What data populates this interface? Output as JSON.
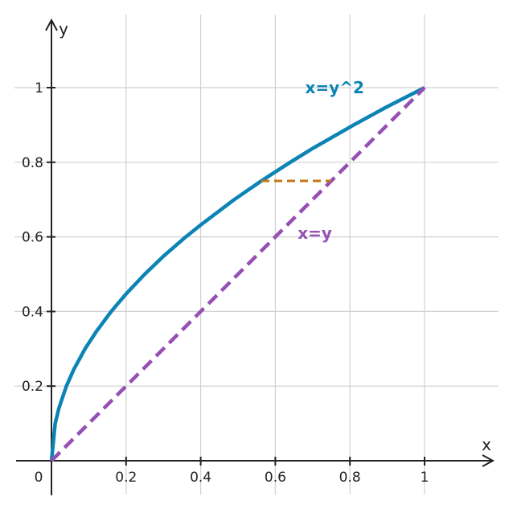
{
  "chart_data": {
    "type": "line",
    "xlabel": "x",
    "ylabel": "y",
    "xlim": [
      0,
      1.18
    ],
    "ylim": [
      0,
      1.18
    ],
    "grid": true,
    "origin_label": "0",
    "x_ticks": [
      {
        "value": 0.2,
        "label": "0.2"
      },
      {
        "value": 0.4,
        "label": "0.4"
      },
      {
        "value": 0.6,
        "label": "0.6"
      },
      {
        "value": 0.8,
        "label": "0.8"
      },
      {
        "value": 1,
        "label": "1"
      }
    ],
    "y_ticks": [
      {
        "value": 0.2,
        "label": "0.2"
      },
      {
        "value": 0.4,
        "label": "0.4"
      },
      {
        "value": 0.6,
        "label": "0.6"
      },
      {
        "value": 0.8,
        "label": "0.8"
      },
      {
        "value": 1,
        "label": "1"
      }
    ],
    "series": [
      {
        "name": "x=y^2",
        "color": "#0b84b5",
        "style": "solid",
        "x": [
          0,
          0.01,
          0.02,
          0.04,
          0.06,
          0.09,
          0.12,
          0.16,
          0.2,
          0.25,
          0.3,
          0.36,
          0.4,
          0.49,
          0.5625,
          0.64,
          0.7,
          0.81,
          0.9,
          1
        ],
        "y": [
          0,
          0.1,
          0.141,
          0.2,
          0.245,
          0.3,
          0.346,
          0.4,
          0.447,
          0.5,
          0.548,
          0.6,
          0.632,
          0.7,
          0.75,
          0.8,
          0.837,
          0.9,
          0.949,
          1
        ]
      },
      {
        "name": "x=y",
        "color": "#9650b4",
        "style": "dashed",
        "x": [
          0,
          1
        ],
        "y": [
          0,
          1
        ]
      }
    ],
    "segments": [
      {
        "x": [
          0.5625,
          0.75
        ],
        "y": [
          0.75,
          0.75
        ],
        "color": "#c07818",
        "style": "dashed"
      }
    ],
    "annotations": [
      {
        "text": "x=y^2",
        "x": 0.68,
        "y": 0.985,
        "color": "#0b84b5"
      },
      {
        "text": "x=y",
        "x": 0.66,
        "y": 0.595,
        "color": "#9650b4"
      }
    ]
  }
}
